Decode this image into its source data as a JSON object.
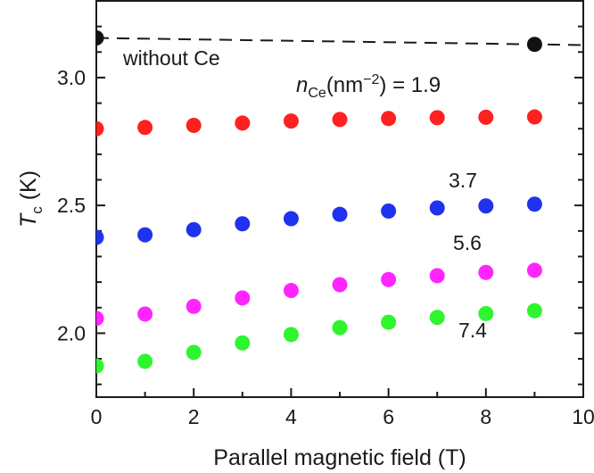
{
  "chart_data": {
    "type": "scatter",
    "title": "",
    "xlabel": "Parallel magnetic field (T)",
    "ylabel": {
      "main": "T",
      "sub": "c",
      "unit": " (K)"
    },
    "xlim": [
      0,
      10
    ],
    "ylim": [
      1.75,
      3.3
    ],
    "xticks": [
      0,
      2,
      4,
      6,
      8,
      10
    ],
    "xtick_labels": [
      "0",
      "2",
      "4",
      "6",
      "8",
      "10"
    ],
    "yticks": [
      2.0,
      2.5,
      3.0
    ],
    "ytick_labels": [
      "2.0",
      "2.5",
      "3.0"
    ],
    "grid": false,
    "series": [
      {
        "name": "without Ce",
        "color": "#111111",
        "x": [
          0,
          9
        ],
        "y": [
          3.155,
          3.13
        ],
        "line": "dashed"
      },
      {
        "name": "1.9",
        "color": "#ff2020",
        "x": [
          0,
          1,
          2,
          3,
          4,
          5,
          6,
          7,
          8,
          9
        ],
        "y": [
          2.8,
          2.805,
          2.813,
          2.822,
          2.83,
          2.836,
          2.84,
          2.843,
          2.845,
          2.846
        ]
      },
      {
        "name": "3.7",
        "color": "#1f33ee",
        "x": [
          0,
          1,
          2,
          3,
          4,
          5,
          6,
          7,
          8,
          9
        ],
        "y": [
          2.375,
          2.385,
          2.405,
          2.428,
          2.448,
          2.465,
          2.478,
          2.49,
          2.498,
          2.505
        ]
      },
      {
        "name": "5.6",
        "color": "#ff25ff",
        "x": [
          0,
          1,
          2,
          3,
          4,
          5,
          6,
          7,
          8,
          9
        ],
        "y": [
          2.058,
          2.075,
          2.105,
          2.138,
          2.167,
          2.19,
          2.21,
          2.225,
          2.238,
          2.246
        ]
      },
      {
        "name": "7.4",
        "color": "#2ef52e",
        "x": [
          0,
          1,
          2,
          3,
          4,
          5,
          6,
          7,
          8,
          9
        ],
        "y": [
          1.872,
          1.89,
          1.925,
          1.962,
          1.995,
          2.022,
          2.043,
          2.062,
          2.077,
          2.088
        ]
      }
    ],
    "annotations": {
      "without_ce": "without Ce",
      "n_main": "n",
      "n_sub": "Ce",
      "n_unit_open": "(nm",
      "n_exp": "−2",
      "n_unit_close": ")",
      "n_eq": " = 1.9",
      "label_37": "3.7",
      "label_56": "5.6",
      "label_74": "7.4"
    }
  }
}
